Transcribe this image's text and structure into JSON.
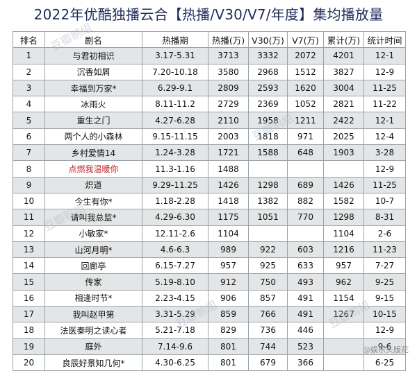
{
  "title": "2022年优酷独播云合【热播/V30/V7/年度】集均播放量",
  "table": {
    "headers": [
      "排名",
      "剧名",
      "热播期",
      "热播(万)",
      "V30(万)",
      "V7(万)",
      "累计(万)",
      "统计时间"
    ],
    "rows": [
      {
        "rank": "1",
        "name": "与君初相识",
        "period": "3.17-5.31",
        "hot": "3713",
        "v30": "3332",
        "v7": "2072",
        "total": "4201",
        "stat": "12-1",
        "red": false
      },
      {
        "rank": "2",
        "name": "沉香如屑",
        "period": "7.20-10.18",
        "hot": "3580",
        "v30": "2968",
        "v7": "1512",
        "total": "3827",
        "stat": "12-9",
        "red": false
      },
      {
        "rank": "3",
        "name": "幸福到万家*",
        "period": "6.29-9.1",
        "hot": "2809",
        "v30": "2593",
        "v7": "1620",
        "total": "3004",
        "stat": "11-25",
        "red": false
      },
      {
        "rank": "4",
        "name": "冰雨火",
        "period": "8.11-11.2",
        "hot": "2729",
        "v30": "2369",
        "v7": "1052",
        "total": "2821",
        "stat": "11-22",
        "red": false
      },
      {
        "rank": "5",
        "name": "重生之门",
        "period": "4.27-6.28",
        "hot": "2110",
        "v30": "1958",
        "v7": "1211",
        "total": "2422",
        "stat": "12-1",
        "red": false
      },
      {
        "rank": "6",
        "name": "两个人的小森林",
        "period": "9.15-11.15",
        "hot": "2003",
        "v30": "1818",
        "v7": "971",
        "total": "2025",
        "stat": "12-4",
        "red": false
      },
      {
        "rank": "7",
        "name": "乡村爱情14",
        "period": "1.24-3.28",
        "hot": "1721",
        "v30": "1588",
        "v7": "648",
        "total": "1903",
        "stat": "3-28",
        "red": false
      },
      {
        "rank": "8",
        "name": "点燃我温暖你",
        "period": "11.3-1.16",
        "hot": "1488",
        "v30": "",
        "v7": "",
        "total": "",
        "stat": "12-9",
        "red": true
      },
      {
        "rank": "9",
        "name": "炽道",
        "period": "9.29-11.25",
        "hot": "1426",
        "v30": "1298",
        "v7": "689",
        "total": "1426",
        "stat": "11-25",
        "red": false
      },
      {
        "rank": "10",
        "name": "今生有你*",
        "period": "1.18-2.28",
        "hot": "1418",
        "v30": "1382",
        "v7": "882",
        "total": "1582",
        "stat": "10-7",
        "red": false
      },
      {
        "rank": "11",
        "name": "请叫我总监*",
        "period": "4.29-6.30",
        "hot": "1175",
        "v30": "1051",
        "v7": "770",
        "total": "1298",
        "stat": "8-31",
        "red": false
      },
      {
        "rank": "12",
        "name": "小敏家*",
        "period": "12.11-2.6",
        "hot": "1104",
        "v30": "",
        "v7": "",
        "total": "1104",
        "stat": "2-6",
        "red": false
      },
      {
        "rank": "13",
        "name": "山河月明*",
        "period": "4.6-6.3",
        "hot": "989",
        "v30": "922",
        "v7": "603",
        "total": "1216",
        "stat": "11-23",
        "red": false
      },
      {
        "rank": "14",
        "name": "回廊亭",
        "period": "6.15-7.27",
        "hot": "957",
        "v30": "925",
        "v7": "633",
        "total": "957",
        "stat": "7-27",
        "red": false
      },
      {
        "rank": "15",
        "name": "传家",
        "period": "5.19-8.10",
        "hot": "912",
        "v30": "750",
        "v7": "493",
        "total": "962",
        "stat": "9-25",
        "red": false
      },
      {
        "rank": "16",
        "name": "相逢时节*",
        "period": "2.23-4.15",
        "hot": "906",
        "v30": "857",
        "v7": "491",
        "total": "1154",
        "stat": "9-15",
        "red": false
      },
      {
        "rank": "17",
        "name": "我叫赵甲第",
        "period": "3.31-5.29",
        "hot": "859",
        "v30": "766",
        "v7": "491",
        "total": "1267",
        "stat": "10-15",
        "red": false
      },
      {
        "rank": "18",
        "name": "法医秦明之读心者",
        "period": "5.21-7.18",
        "hot": "829",
        "v30": "736",
        "v7": "446",
        "total": "",
        "stat": "12-9",
        "red": false
      },
      {
        "rank": "19",
        "name": "庭外",
        "period": "7.14-9.6",
        "hot": "801",
        "v30": "744",
        "v7": "523",
        "total": "",
        "stat": "9-6",
        "red": false
      },
      {
        "rank": "20",
        "name": "良辰好景知几何*",
        "period": "4.30-6.25",
        "hot": "801",
        "v30": "679",
        "v7": "366",
        "total": "",
        "stat": "6-25",
        "red": false
      }
    ]
  },
  "watermarks": [
    "豆瓣鹅组",
    "豆瓣鹅组",
    "豆瓣鹅组",
    "豆瓣鹅组",
    "豆瓣鹅组"
  ],
  "weibo_credit": "@娱乐头版花"
}
